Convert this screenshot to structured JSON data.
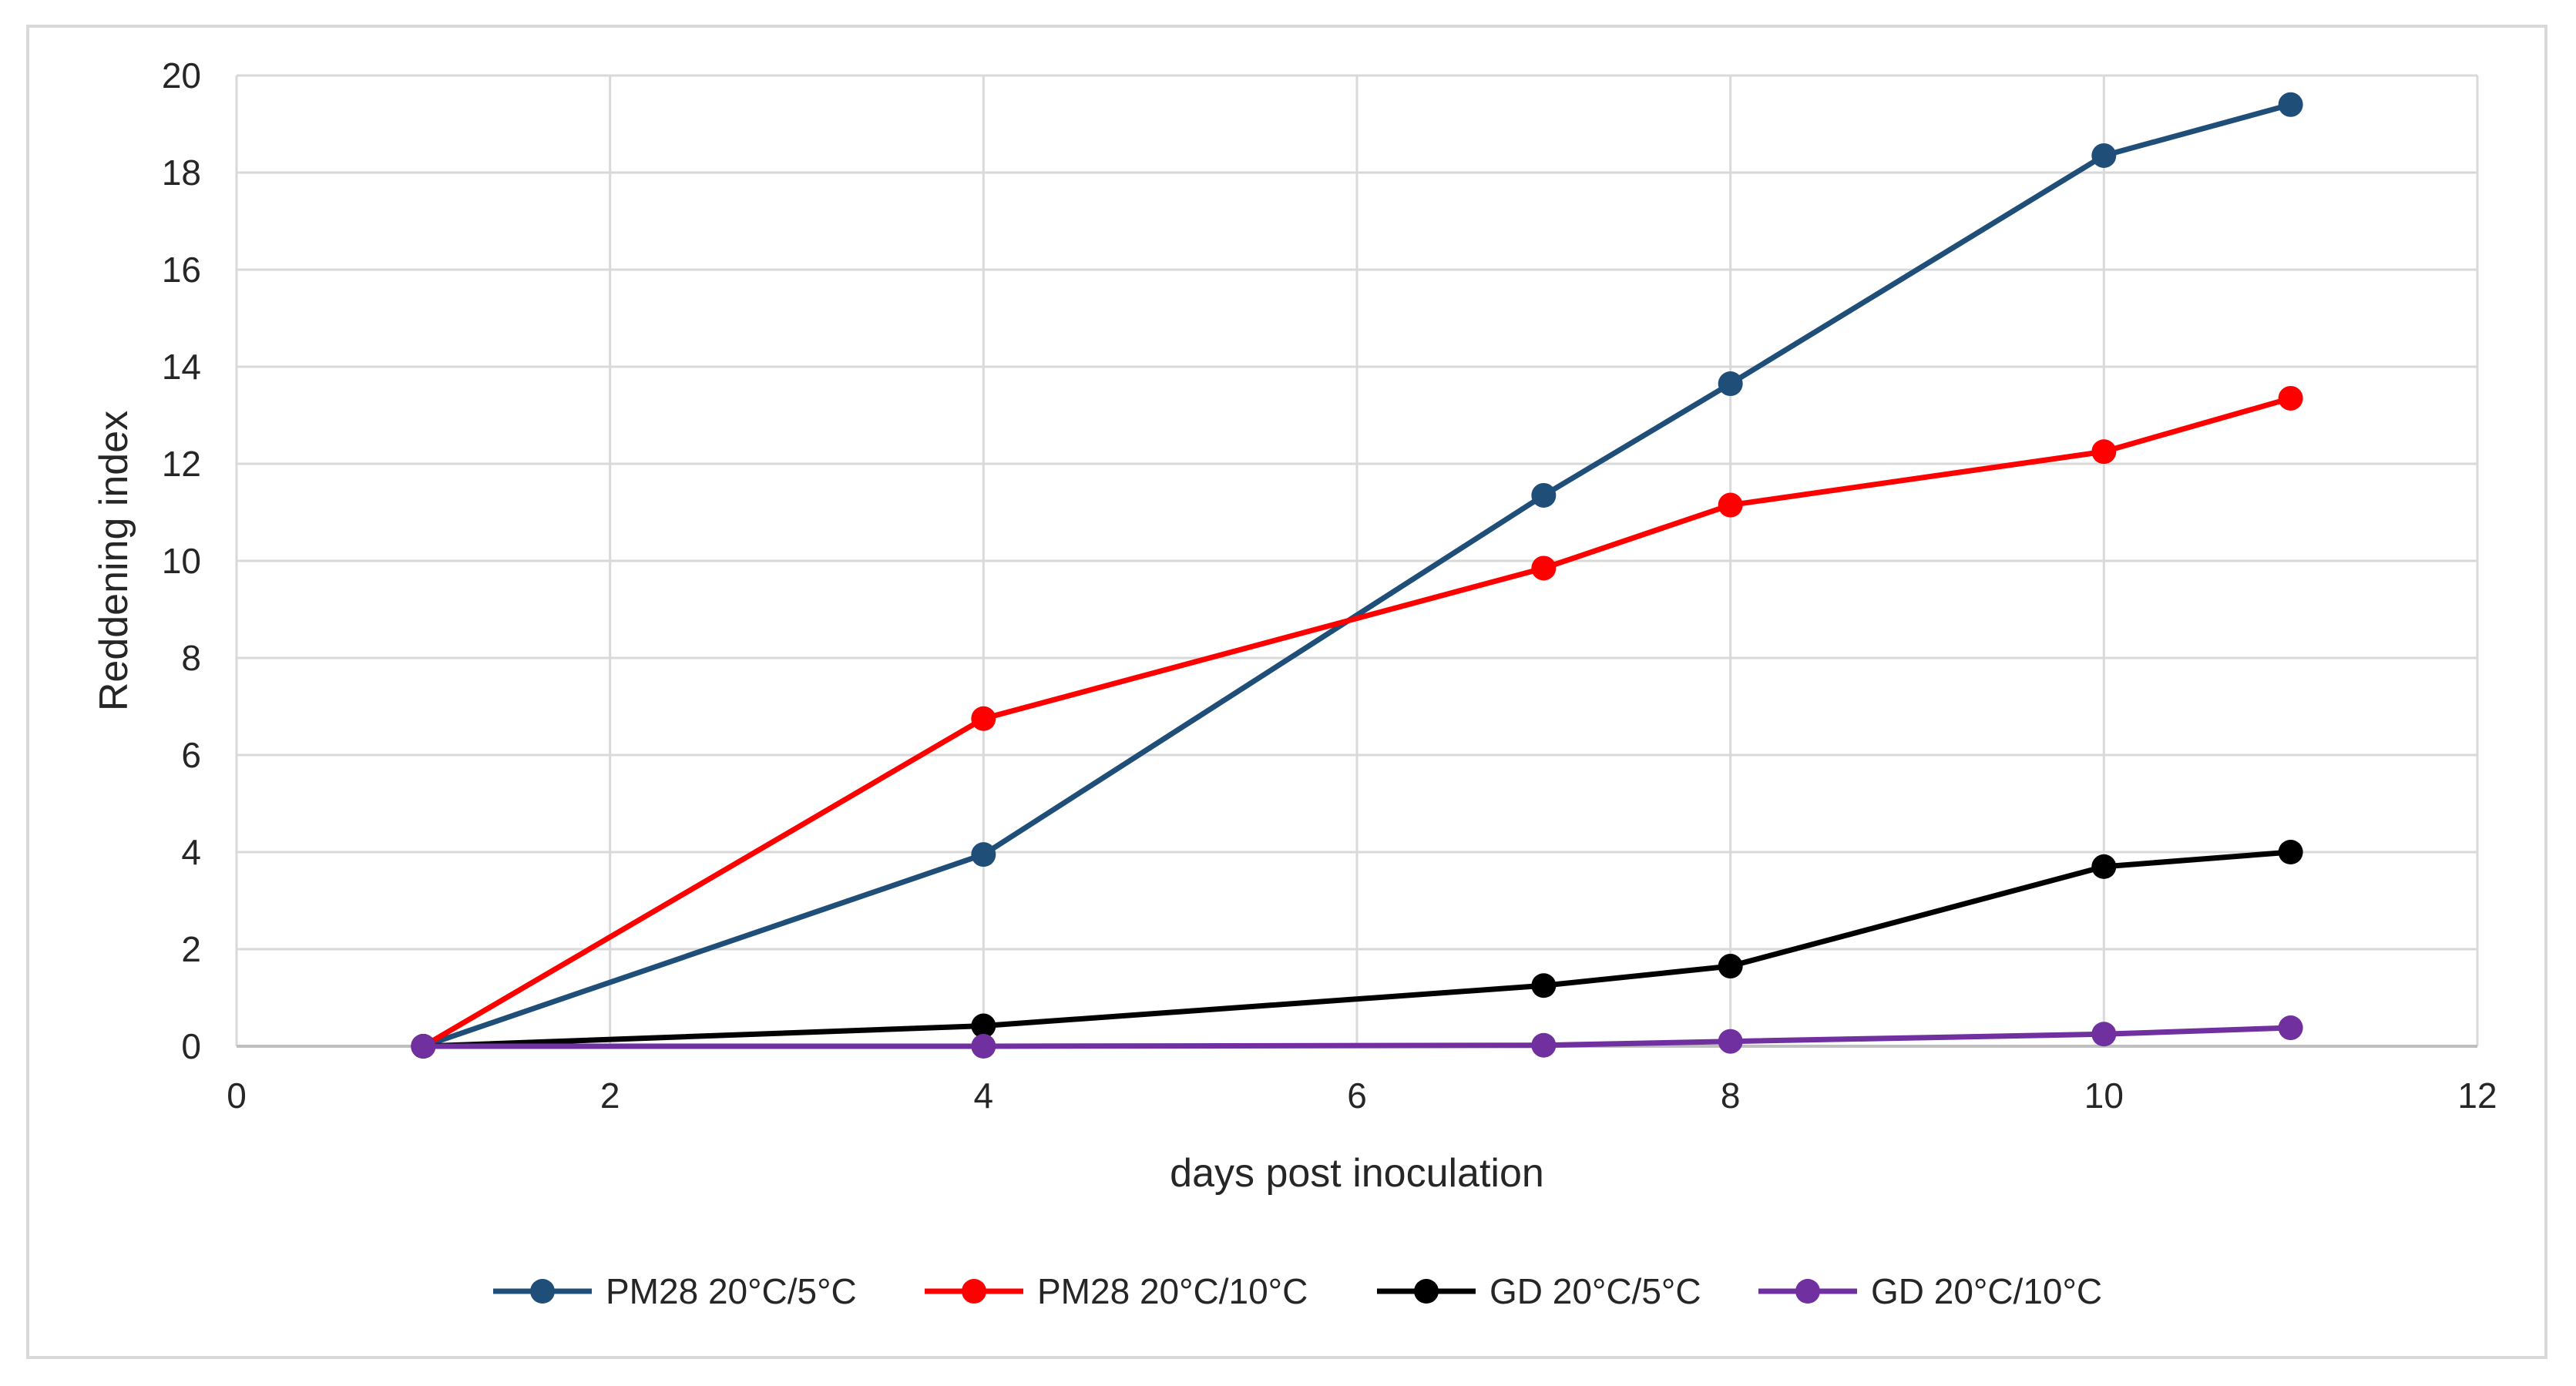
{
  "chart_data": {
    "type": "line",
    "title": "",
    "xlabel": "days post inoculation",
    "ylabel": "Reddening index",
    "xlim": [
      0,
      12
    ],
    "ylim": [
      0,
      20
    ],
    "xticks": [
      0,
      2,
      4,
      6,
      8,
      10,
      12
    ],
    "yticks": [
      0,
      2,
      4,
      6,
      8,
      10,
      12,
      14,
      16,
      18,
      20
    ],
    "grid": true,
    "legend_position": "bottom",
    "x": [
      1,
      4,
      7,
      8,
      10,
      11
    ],
    "series": [
      {
        "name": "PM28 20°C/5°C",
        "color": "#1f4e79",
        "values": [
          0,
          3.95,
          11.35,
          13.65,
          18.35,
          19.4
        ]
      },
      {
        "name": "PM28 20°C/10°C",
        "color": "#ff0000",
        "values": [
          0,
          6.75,
          9.85,
          11.15,
          12.25,
          13.35
        ]
      },
      {
        "name": "GD 20°C/5°C",
        "color": "#000000",
        "values": [
          0,
          0.42,
          1.25,
          1.65,
          3.7,
          4.0
        ]
      },
      {
        "name": "GD 20°C/10°C",
        "color": "#7030a0",
        "values": [
          0,
          0.0,
          0.02,
          0.1,
          0.25,
          0.38
        ]
      }
    ]
  }
}
